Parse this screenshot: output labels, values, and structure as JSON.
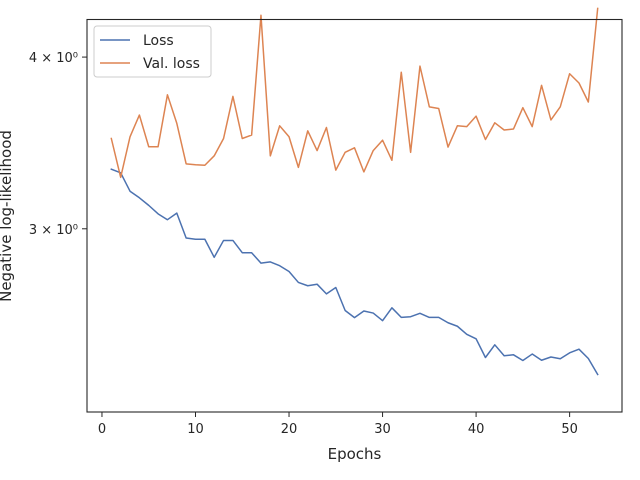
{
  "chart_data": {
    "type": "line",
    "title": "",
    "xlabel": "Epochs",
    "ylabel": "Negative log-likelihood",
    "xlim": [
      -1.6,
      55.6
    ],
    "ylim": [
      2.207,
      4.26
    ],
    "yscale": "log",
    "grid": false,
    "legend_position": "top-left",
    "x_ticks": [
      0,
      10,
      20,
      30,
      40,
      50
    ],
    "x_tick_labels": [
      "0",
      "10",
      "20",
      "30",
      "40",
      "50"
    ],
    "y_ticks": [
      3.0,
      4.0
    ],
    "y_tick_labels": [
      "3 × 10⁰",
      "4 × 10⁰"
    ],
    "x": [
      1,
      2,
      3,
      4,
      5,
      6,
      7,
      8,
      9,
      10,
      11,
      12,
      13,
      14,
      15,
      16,
      17,
      18,
      19,
      20,
      21,
      22,
      23,
      24,
      25,
      26,
      27,
      28,
      29,
      30,
      31,
      32,
      33,
      34,
      35,
      36,
      37,
      38,
      39,
      40,
      41,
      42,
      43,
      44,
      45,
      46,
      47,
      48,
      49,
      50,
      51,
      52,
      53
    ],
    "series": [
      {
        "name": "Loss",
        "color": "#4c72b0",
        "values": [
          3.315,
          3.295,
          3.195,
          3.16,
          3.12,
          3.076,
          3.046,
          3.08,
          2.954,
          2.948,
          2.948,
          2.86,
          2.942,
          2.942,
          2.882,
          2.882,
          2.832,
          2.838,
          2.82,
          2.793,
          2.742,
          2.727,
          2.734,
          2.69,
          2.719,
          2.616,
          2.585,
          2.614,
          2.605,
          2.572,
          2.628,
          2.586,
          2.589,
          2.604,
          2.586,
          2.586,
          2.563,
          2.548,
          2.514,
          2.495,
          2.418,
          2.47,
          2.425,
          2.429,
          2.406,
          2.432,
          2.407,
          2.42,
          2.413,
          2.437,
          2.452,
          2.414,
          2.35
        ]
      },
      {
        "name": "Val. loss",
        "color": "#dd8452",
        "values": [
          3.49,
          3.27,
          3.5,
          3.63,
          3.442,
          3.442,
          3.755,
          3.58,
          3.345,
          3.34,
          3.337,
          3.39,
          3.49,
          3.745,
          3.49,
          3.51,
          4.29,
          3.39,
          3.565,
          3.5,
          3.325,
          3.535,
          3.42,
          3.555,
          3.31,
          3.41,
          3.436,
          3.3,
          3.42,
          3.48,
          3.365,
          3.9,
          3.41,
          3.94,
          3.68,
          3.67,
          3.44,
          3.565,
          3.56,
          3.623,
          3.484,
          3.583,
          3.54,
          3.546,
          3.675,
          3.56,
          3.815,
          3.6,
          3.68,
          3.89,
          3.83,
          3.71,
          4.34
        ]
      }
    ]
  }
}
